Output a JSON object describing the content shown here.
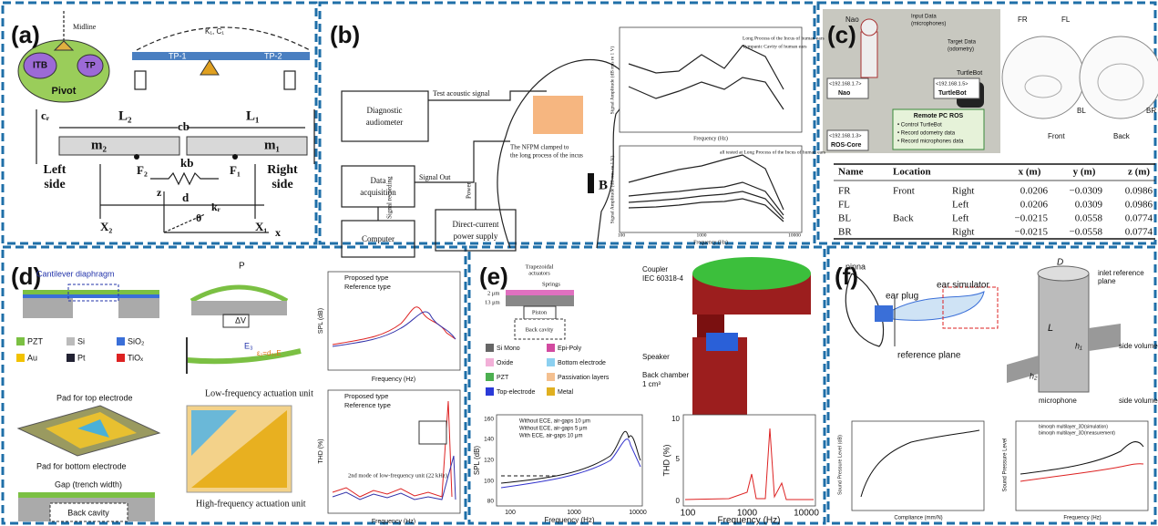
{
  "panels": {
    "a": {
      "texts": [
        "(a)",
        "Midline",
        "ITB",
        "TP",
        "Pivot",
        "TP-1",
        "TP-2",
        "L₂",
        "L₁",
        "m₂",
        "m₁",
        "Left",
        "side",
        "Right",
        "side",
        "F₂",
        "F₁",
        "kb",
        "cb",
        "d",
        "X₂",
        "X₁",
        "z",
        "θ",
        "kᵣ",
        "x",
        "cᵣ",
        "K₁, C₁"
      ]
    },
    "b": {
      "texts": [
        "(b)",
        "Diagnostic",
        "audiometer",
        "Test acoustic signal",
        "Data",
        "acquisition",
        "Signal Out",
        "Signal recording",
        "Computer",
        "Direct-current",
        "power supply",
        "Power",
        "The NFPM clamped to",
        "the long process of the incus",
        "B",
        "Long Process of the Incus of human ears",
        "Tympanic Cavity of human ears",
        "Frequency (Hz)",
        "Signal Amplitude (dB rms re 1 V)",
        "all tested at Long Process of the Incus of human ears",
        "Frequency (Hz)",
        "Signal Amplitude (dB rms re 1 V)",
        "100",
        "1000",
        "10000"
      ]
    },
    "c": {
      "texts": [
        "(c)",
        "Nao",
        "Input Data",
        "(microphones)",
        "Target Data",
        "(odometry)",
        "TurtleBot",
        "<192.168.1.7>",
        "Nao",
        "<192.168.1.5>",
        "TurtleBot",
        "Remote PC ROS",
        "• Control TurtleBot",
        "• Record odometry data",
        "• Record microphones data",
        "<192.168.1.3>",
        "ROS-Core",
        "FR",
        "FL",
        "Front",
        "BL",
        "BR",
        "Back"
      ],
      "table": {
        "headers": [
          "Name",
          "Location",
          "x (m)",
          "y (m)",
          "z (m)"
        ],
        "rows": [
          {
            "name": "FR",
            "location": "Front",
            "side": "Right",
            "x": "0.0206",
            "y": "−0.0309",
            "z": "0.0986"
          },
          {
            "name": "FL",
            "side": "Left",
            "x": "0.0206",
            "y": "0.0309",
            "z": "0.0986"
          },
          {
            "name": "BL",
            "location": "Back",
            "side": "Left",
            "x": "−0.0215",
            "y": "0.0558",
            "z": "0.0774"
          },
          {
            "name": "BR",
            "side": "Right",
            "x": "−0.0215",
            "y": "−0.0558",
            "z": "0.0774"
          }
        ]
      }
    },
    "d": {
      "texts": [
        "(d)",
        "Cantilever diaphragm",
        "P",
        "ΔV",
        "E₃",
        "ε₁=d₃₁E",
        "PZT",
        "Si",
        "SiO₂",
        "Au",
        "Pt",
        "TiOₓ",
        "Pad for top electrode",
        "Pad for bottom electrode",
        "Gap (trench width)",
        "Back cavity",
        "Low-frequency actuation unit",
        "High-frequency actuation unit",
        "Proposed type",
        "Reference type",
        "SPL (dB)",
        "Frequency (Hz)",
        "Proposed type",
        "Reference type",
        "THD (%)",
        "Frequency (Hz)",
        "2nd mode of low-frequency unit (22 kHz)"
      ]
    },
    "e": {
      "texts": [
        "(e)",
        "Trapezoidal",
        "actuators",
        "Springs",
        "2 μm",
        "13 μm",
        "Piston",
        "Back cavity",
        "Si Mono",
        "Epi-Poly",
        "Oxide",
        "Bottom electrode",
        "PZT",
        "Passivation layers",
        "Top-electrode",
        "Metal",
        "Coupler",
        "IEC 60318-4",
        "Speaker",
        "Back chamber",
        "1 cm³",
        "Without ECE, air-gaps 10 μm",
        "Without ECE, air-gaps 5 μm",
        "With ECE, air-gaps 10 μm",
        "SPL (dB)",
        "Frequency (Hz)",
        "160",
        "140",
        "120",
        "100",
        "80",
        "100",
        "1000",
        "10000",
        "THD (%)",
        "Frequency (Hz)",
        "10",
        "5",
        "0",
        "100",
        "1000",
        "10000"
      ]
    },
    "f": {
      "texts": [
        "(f)",
        "pinna",
        "ear plug",
        "ear simulator",
        "reference plane",
        "D",
        "L",
        "h₁",
        "h₂",
        "inlet reference",
        "plane",
        "side volume",
        "microphone",
        "side volume 2",
        "Sound Pressure Level (dB)",
        "Compliance (mm/N)",
        "bimorph multilayer_3D(simulation)",
        "bimorph multilayer_3D(measurement)",
        "Sound Pressure Level",
        "Frequency (Hz)"
      ]
    }
  }
}
